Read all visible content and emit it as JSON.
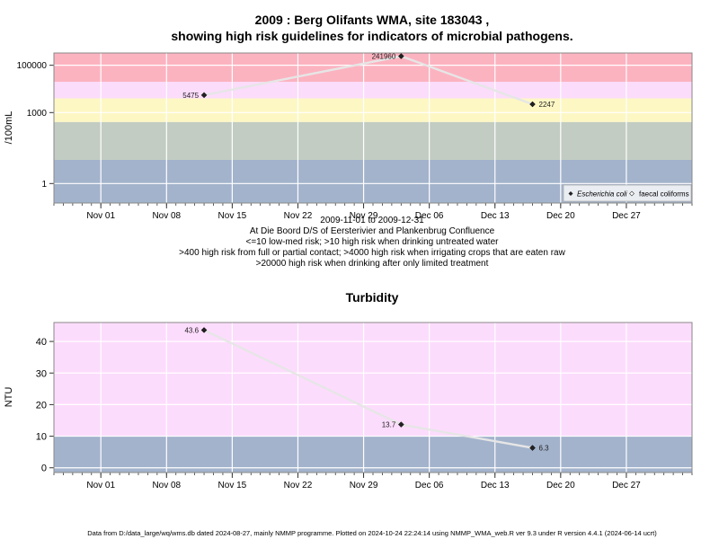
{
  "chart_data": [
    {
      "type": "line",
      "title_line1": "2009 : Berg Olifants WMA, site 183043 ,",
      "title_line2": "showing high risk guidelines for indicators of microbial pathogens.",
      "ylabel": "/100mL",
      "y_scale": "log",
      "ylim": [
        0.15,
        330000
      ],
      "y_ticks": [
        {
          "v": 1,
          "label": "1"
        },
        {
          "v": 1000,
          "label": "1000"
        },
        {
          "v": 100000,
          "label": "100000"
        }
      ],
      "xlim": [
        "2009-10-27",
        "2010-01-03"
      ],
      "x_ticks": [
        {
          "d": "2009-11-01",
          "label": "Nov 01"
        },
        {
          "d": "2009-11-08",
          "label": "Nov 08"
        },
        {
          "d": "2009-11-15",
          "label": "Nov 15"
        },
        {
          "d": "2009-11-22",
          "label": "Nov 22"
        },
        {
          "d": "2009-11-29",
          "label": "Nov 29"
        },
        {
          "d": "2009-12-06",
          "label": "Dec 06"
        },
        {
          "d": "2009-12-13",
          "label": "Dec 13"
        },
        {
          "d": "2009-12-20",
          "label": "Dec 20"
        },
        {
          "d": "2009-12-27",
          "label": "Dec 27"
        }
      ],
      "bands": [
        {
          "from": 0.15,
          "to": 10,
          "color": "#a3b3cc"
        },
        {
          "from": 10,
          "to": 400,
          "color": "#c2ccc2"
        },
        {
          "from": 400,
          "to": 4000,
          "color": "#fdf7c4"
        },
        {
          "from": 4000,
          "to": 20000,
          "color": "#fbdcfb"
        },
        {
          "from": 20000,
          "to": 330000,
          "color": "#fcb3c0"
        }
      ],
      "series": [
        {
          "name": "Escherichia coli",
          "x": [
            "2009-11-12",
            "2009-12-03",
            "2009-12-17"
          ],
          "y": [
            5475,
            241960,
            2247
          ],
          "labels": [
            "5475",
            "241960",
            "2247"
          ]
        }
      ],
      "legend": {
        "position": "bottom-right",
        "entries": [
          "Escherichia coli",
          "faecal coliforms"
        ]
      },
      "subtitle_lines": [
        "2009-11-01 to 2009-12-31",
        "At Die Boord D/S of Eersterivier and Plankenbrug Confluence",
        "<=10 low-med risk; >10 high risk when drinking untreated water",
        ">400 high risk from full or partial contact; >4000 high risk when irrigating crops that are eaten raw",
        ">20000 high risk when drinking after only limited treatment"
      ]
    },
    {
      "type": "line",
      "title": "Turbidity",
      "ylabel": "NTU",
      "ylim": [
        -1.5,
        46
      ],
      "y_ticks": [
        {
          "v": 0,
          "label": "0"
        },
        {
          "v": 10,
          "label": "10"
        },
        {
          "v": 20,
          "label": "20"
        },
        {
          "v": 30,
          "label": "30"
        },
        {
          "v": 40,
          "label": "40"
        }
      ],
      "xlim": [
        "2009-10-27",
        "2010-01-03"
      ],
      "x_ticks": [
        {
          "d": "2009-11-01",
          "label": "Nov 01"
        },
        {
          "d": "2009-11-08",
          "label": "Nov 08"
        },
        {
          "d": "2009-11-15",
          "label": "Nov 15"
        },
        {
          "d": "2009-11-22",
          "label": "Nov 22"
        },
        {
          "d": "2009-11-29",
          "label": "Nov 29"
        },
        {
          "d": "2009-12-06",
          "label": "Dec 06"
        },
        {
          "d": "2009-12-13",
          "label": "Dec 13"
        },
        {
          "d": "2009-12-20",
          "label": "Dec 20"
        },
        {
          "d": "2009-12-27",
          "label": "Dec 27"
        }
      ],
      "bands": [
        {
          "from": -1.5,
          "to": 10,
          "color": "#a3b3cc"
        },
        {
          "from": 10,
          "to": 46,
          "color": "#fcdcfc"
        }
      ],
      "series": [
        {
          "name": "",
          "x": [
            "2009-11-12",
            "2009-12-03",
            "2009-12-17"
          ],
          "y": [
            43.6,
            13.7,
            6.3
          ],
          "labels": [
            "43.6",
            "13.7",
            "6.3"
          ]
        }
      ]
    }
  ],
  "footer": "Data from D:/data_large/wq/wms.db dated 2024-08-27, mainly NMMP programme. Plotted on 2024-10-24 22:24:14 using NMMP_WMA_web.R ver 9.3 under R version 4.4.1 (2024-06-14 ucrt)"
}
